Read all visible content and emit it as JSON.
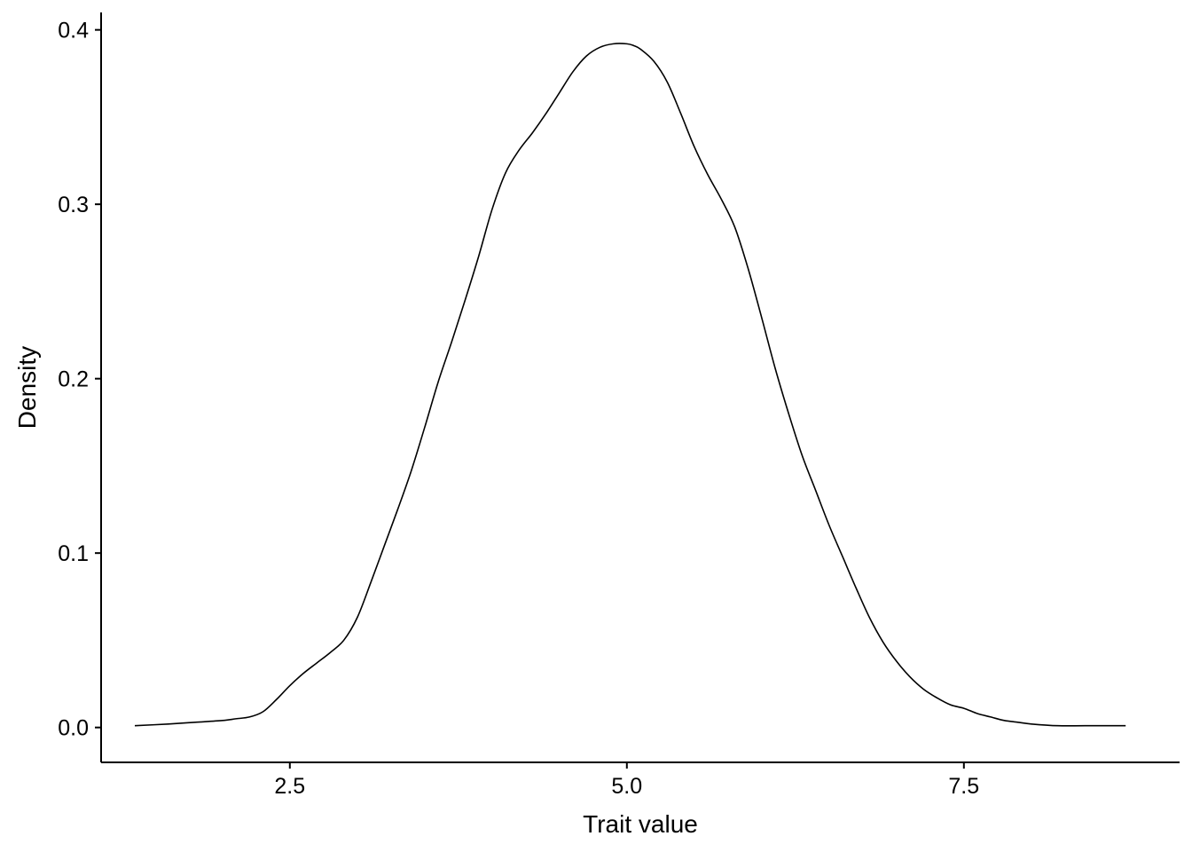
{
  "chart_data": {
    "type": "line",
    "title": "",
    "xlabel": "Trait value",
    "ylabel": "Density",
    "xlim": [
      1.1,
      9.1
    ],
    "ylim": [
      -0.02,
      0.41
    ],
    "xticks": [
      2.5,
      5.0,
      7.5
    ],
    "xtick_labels": [
      "2.5",
      "5.0",
      "7.5"
    ],
    "yticks": [
      0.0,
      0.1,
      0.2,
      0.3,
      0.4
    ],
    "ytick_labels": [
      "0.0",
      "0.1",
      "0.2",
      "0.3",
      "0.4"
    ],
    "grid": false,
    "legend": "none",
    "line_color": "#000000",
    "series": [
      {
        "x": [
          1.35,
          1.6,
          1.8,
          2.0,
          2.1,
          2.2,
          2.3,
          2.4,
          2.5,
          2.6,
          2.7,
          2.8,
          2.9,
          3.0,
          3.1,
          3.2,
          3.3,
          3.4,
          3.5,
          3.6,
          3.7,
          3.8,
          3.9,
          4.0,
          4.1,
          4.2,
          4.3,
          4.4,
          4.5,
          4.6,
          4.7,
          4.8,
          4.9,
          5.0,
          5.05,
          5.1,
          5.2,
          5.3,
          5.4,
          5.5,
          5.6,
          5.7,
          5.8,
          5.9,
          6.0,
          6.1,
          6.2,
          6.3,
          6.4,
          6.5,
          6.6,
          6.7,
          6.8,
          6.9,
          7.0,
          7.1,
          7.2,
          7.3,
          7.4,
          7.5,
          7.6,
          7.7,
          7.8,
          7.9,
          8.0,
          8.2,
          8.4,
          8.7
        ],
        "y": [
          0.001,
          0.002,
          0.003,
          0.004,
          0.005,
          0.006,
          0.009,
          0.016,
          0.024,
          0.031,
          0.037,
          0.043,
          0.05,
          0.063,
          0.083,
          0.104,
          0.125,
          0.147,
          0.172,
          0.198,
          0.221,
          0.245,
          0.27,
          0.297,
          0.318,
          0.331,
          0.341,
          0.352,
          0.364,
          0.376,
          0.385,
          0.39,
          0.392,
          0.392,
          0.391,
          0.389,
          0.382,
          0.37,
          0.352,
          0.333,
          0.317,
          0.303,
          0.287,
          0.263,
          0.235,
          0.206,
          0.18,
          0.156,
          0.136,
          0.116,
          0.098,
          0.08,
          0.063,
          0.049,
          0.038,
          0.029,
          0.022,
          0.017,
          0.013,
          0.011,
          0.008,
          0.006,
          0.004,
          0.003,
          0.002,
          0.001,
          0.001,
          0.001
        ]
      }
    ]
  }
}
